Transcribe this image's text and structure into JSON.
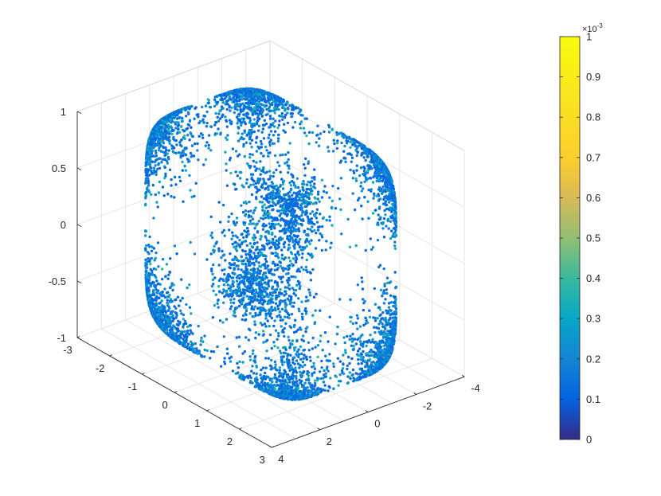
{
  "chart_data": {
    "type": "scatter",
    "series": [
      {
        "name": "",
        "shape": "rounded cube / torus-like shell with concave faces",
        "x_range": [
          -2.5,
          2.5
        ],
        "y_range": [
          -2.5,
          2.5
        ],
        "z_range": [
          -1,
          1
        ],
        "color_range": [
          0,
          0.00035
        ],
        "typical_color_value": 0.0001,
        "point_count_estimate": 9000
      }
    ],
    "axes": {
      "x": {
        "ticks": [
          "-3",
          "-2",
          "-1",
          "0",
          "1",
          "2",
          "3"
        ],
        "lim": [
          -3,
          3
        ]
      },
      "y": {
        "ticks": [
          "-4",
          "-2",
          "0",
          "2",
          "4"
        ],
        "lim": [
          -4,
          4
        ]
      },
      "z": {
        "ticks": [
          "-1",
          "-0.5",
          "0",
          "0.5",
          "1"
        ],
        "lim": [
          -1,
          1
        ]
      }
    },
    "grid": true,
    "view": "3-D default (azimuth -37.5, elevation 30)",
    "colorbar": {
      "colormap": "parula",
      "ticks": [
        "0",
        "0.1",
        "0.2",
        "0.3",
        "0.4",
        "0.5",
        "0.6",
        "0.7",
        "0.8",
        "0.9",
        "1"
      ],
      "exponent_label": "×10",
      "exponent_power": "-3",
      "lim": [
        0,
        0.001
      ]
    }
  }
}
